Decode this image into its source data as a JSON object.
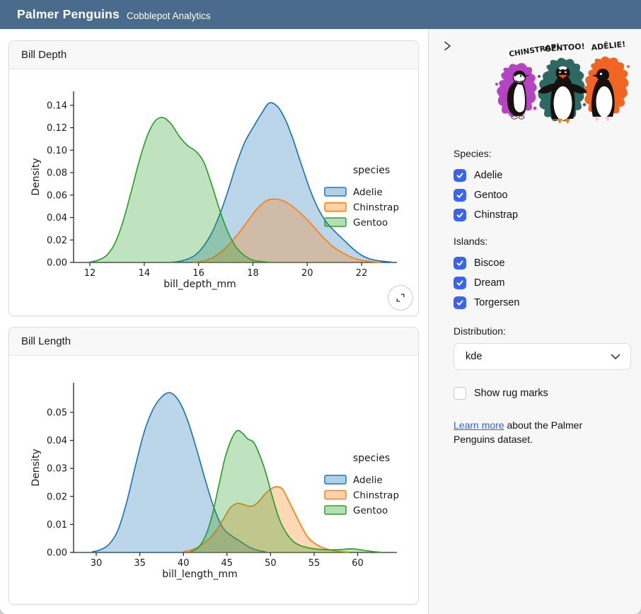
{
  "header": {
    "title": "Palmer Penguins",
    "subtitle": "Cobblepot Analytics"
  },
  "cards": [
    {
      "title": "Bill Depth"
    },
    {
      "title": "Bill Length"
    }
  ],
  "sidebar": {
    "collapse_icon": "chevron-right",
    "artwork": {
      "labels": [
        "CHINSTRAP!",
        "GENTOO!",
        "ADĒLIE!"
      ],
      "splash_colors": {
        "chinstrap": "#b444bf",
        "gentoo": "#2d6862",
        "adelie": "#f06522"
      }
    },
    "species": {
      "label": "Species:",
      "options": [
        {
          "label": "Adelie",
          "checked": true
        },
        {
          "label": "Gentoo",
          "checked": true
        },
        {
          "label": "Chinstrap",
          "checked": true
        }
      ]
    },
    "islands": {
      "label": "Islands:",
      "options": [
        {
          "label": "Biscoe",
          "checked": true
        },
        {
          "label": "Dream",
          "checked": true
        },
        {
          "label": "Torgersen",
          "checked": true
        }
      ]
    },
    "distribution": {
      "label": "Distribution:",
      "value": "kde"
    },
    "rug": {
      "label": "Show rug marks",
      "checked": false
    },
    "learn_more": {
      "link": "Learn more",
      "text": " about the Palmer Penguins dataset."
    },
    "accent": "#3a63f2"
  },
  "chart_data": [
    {
      "type": "area",
      "title": "Bill Depth",
      "xlabel": "bill_depth_mm",
      "ylabel": "Density",
      "xlim": [
        11.4,
        23.3
      ],
      "ylim": [
        0,
        0.1525
      ],
      "xticks": [
        12,
        14,
        16,
        18,
        20,
        22
      ],
      "yticks": [
        0.0,
        0.02,
        0.04,
        0.06,
        0.08,
        0.1,
        0.12,
        0.14
      ],
      "legend_title": "species",
      "legend_position": "right",
      "grid": false,
      "series": [
        {
          "name": "Adelie",
          "color": "#1f77b4",
          "points": [
            [
              15.0,
              0.0002
            ],
            [
              15.3,
              0.001
            ],
            [
              15.6,
              0.003
            ],
            [
              15.9,
              0.007
            ],
            [
              16.2,
              0.015
            ],
            [
              16.5,
              0.027
            ],
            [
              16.8,
              0.044
            ],
            [
              17.1,
              0.065
            ],
            [
              17.4,
              0.088
            ],
            [
              17.7,
              0.107
            ],
            [
              18.0,
              0.12
            ],
            [
              18.3,
              0.132
            ],
            [
              18.6,
              0.142
            ],
            [
              18.9,
              0.139
            ],
            [
              19.2,
              0.127
            ],
            [
              19.5,
              0.108
            ],
            [
              19.8,
              0.086
            ],
            [
              20.1,
              0.065
            ],
            [
              20.4,
              0.048
            ],
            [
              20.7,
              0.036
            ],
            [
              21.0,
              0.028
            ],
            [
              21.3,
              0.021
            ],
            [
              21.6,
              0.014
            ],
            [
              21.9,
              0.008
            ],
            [
              22.2,
              0.004
            ],
            [
              22.5,
              0.002
            ],
            [
              22.8,
              0.001
            ],
            [
              23.1,
              0.0003
            ]
          ]
        },
        {
          "name": "Chinstrap",
          "color": "#ff7f0e",
          "points": [
            [
              15.8,
              0.0003
            ],
            [
              16.1,
              0.001
            ],
            [
              16.4,
              0.003
            ],
            [
              16.7,
              0.007
            ],
            [
              17.0,
              0.013
            ],
            [
              17.3,
              0.021
            ],
            [
              17.6,
              0.03
            ],
            [
              17.9,
              0.04
            ],
            [
              18.2,
              0.049
            ],
            [
              18.5,
              0.055
            ],
            [
              18.8,
              0.0565
            ],
            [
              19.1,
              0.055
            ],
            [
              19.4,
              0.051
            ],
            [
              19.7,
              0.045
            ],
            [
              20.0,
              0.038
            ],
            [
              20.3,
              0.03
            ],
            [
              20.6,
              0.022
            ],
            [
              20.9,
              0.015
            ],
            [
              21.2,
              0.01
            ],
            [
              21.5,
              0.006
            ],
            [
              21.8,
              0.003
            ],
            [
              22.1,
              0.0015
            ],
            [
              22.4,
              0.0006
            ],
            [
              22.7,
              0.0002
            ]
          ]
        },
        {
          "name": "Gentoo",
          "color": "#2ca02c",
          "points": [
            [
              12.0,
              0.0003
            ],
            [
              12.3,
              0.002
            ],
            [
              12.6,
              0.006
            ],
            [
              12.9,
              0.016
            ],
            [
              13.2,
              0.035
            ],
            [
              13.5,
              0.061
            ],
            [
              13.8,
              0.089
            ],
            [
              14.1,
              0.112
            ],
            [
              14.4,
              0.126
            ],
            [
              14.7,
              0.129
            ],
            [
              15.0,
              0.123
            ],
            [
              15.3,
              0.112
            ],
            [
              15.6,
              0.104
            ],
            [
              15.9,
              0.099
            ],
            [
              16.2,
              0.089
            ],
            [
              16.5,
              0.068
            ],
            [
              16.8,
              0.045
            ],
            [
              17.1,
              0.026
            ],
            [
              17.4,
              0.013
            ],
            [
              17.7,
              0.006
            ],
            [
              18.0,
              0.002
            ],
            [
              18.3,
              0.0008
            ],
            [
              18.6,
              0.0002
            ]
          ]
        }
      ]
    },
    {
      "type": "area",
      "title": "Bill Length",
      "xlabel": "bill_length_mm",
      "ylabel": "Density",
      "xlim": [
        27.4,
        64.5
      ],
      "ylim": [
        0,
        0.0606
      ],
      "xticks": [
        30,
        35,
        40,
        45,
        50,
        55,
        60
      ],
      "yticks": [
        0.0,
        0.01,
        0.02,
        0.03,
        0.04,
        0.05
      ],
      "legend_title": "species",
      "legend_position": "right",
      "grid": false,
      "series": [
        {
          "name": "Adelie",
          "color": "#1f77b4",
          "points": [
            [
              29.5,
              0.0002
            ],
            [
              30.5,
              0.001
            ],
            [
              31.5,
              0.003
            ],
            [
              32.5,
              0.008
            ],
            [
              33.5,
              0.018
            ],
            [
              34.5,
              0.031
            ],
            [
              35.5,
              0.043
            ],
            [
              36.5,
              0.051
            ],
            [
              37.5,
              0.0555
            ],
            [
              38.5,
              0.057
            ],
            [
              39.5,
              0.054
            ],
            [
              40.5,
              0.047
            ],
            [
              41.5,
              0.037
            ],
            [
              42.5,
              0.026
            ],
            [
              43.5,
              0.016
            ],
            [
              44.5,
              0.009
            ],
            [
              45.5,
              0.006
            ],
            [
              46.5,
              0.004
            ],
            [
              47.5,
              0.002
            ],
            [
              48.5,
              0.0008
            ],
            [
              49.5,
              0.0002
            ]
          ]
        },
        {
          "name": "Chinstrap",
          "color": "#ff7f0e",
          "points": [
            [
              40.0,
              0.0003
            ],
            [
              41.0,
              0.001
            ],
            [
              42.0,
              0.0025
            ],
            [
              43.0,
              0.005
            ],
            [
              43.8,
              0.008
            ],
            [
              44.6,
              0.012
            ],
            [
              45.4,
              0.016
            ],
            [
              46.2,
              0.0175
            ],
            [
              47.0,
              0.017
            ],
            [
              47.8,
              0.0165
            ],
            [
              48.6,
              0.018
            ],
            [
              49.4,
              0.021
            ],
            [
              50.2,
              0.023
            ],
            [
              50.8,
              0.0235
            ],
            [
              51.4,
              0.0225
            ],
            [
              52.0,
              0.019
            ],
            [
              52.8,
              0.014
            ],
            [
              53.6,
              0.009
            ],
            [
              54.4,
              0.005
            ],
            [
              55.2,
              0.003
            ],
            [
              56.0,
              0.0017
            ],
            [
              57.0,
              0.0008
            ],
            [
              58.0,
              0.0003
            ],
            [
              59.0,
              0.0001
            ]
          ]
        },
        {
          "name": "Gentoo",
          "color": "#2ca02c",
          "points": [
            [
              40.8,
              0.0003
            ],
            [
              41.6,
              0.0015
            ],
            [
              42.4,
              0.005
            ],
            [
              43.2,
              0.012
            ],
            [
              44.0,
              0.023
            ],
            [
              44.8,
              0.034
            ],
            [
              45.6,
              0.041
            ],
            [
              46.2,
              0.0435
            ],
            [
              46.8,
              0.0425
            ],
            [
              47.4,
              0.0405
            ],
            [
              48.0,
              0.0395
            ],
            [
              48.6,
              0.036
            ],
            [
              49.4,
              0.029
            ],
            [
              50.2,
              0.02
            ],
            [
              51.0,
              0.012
            ],
            [
              51.8,
              0.007
            ],
            [
              52.6,
              0.004
            ],
            [
              53.4,
              0.0025
            ],
            [
              54.2,
              0.0018
            ],
            [
              55.0,
              0.0013
            ],
            [
              56.0,
              0.001
            ],
            [
              57.0,
              0.0009
            ],
            [
              58.0,
              0.001
            ],
            [
              59.0,
              0.0013
            ],
            [
              59.8,
              0.0012
            ],
            [
              60.8,
              0.0007
            ],
            [
              61.8,
              0.0003
            ],
            [
              62.6,
              0.0001
            ]
          ]
        }
      ]
    }
  ]
}
